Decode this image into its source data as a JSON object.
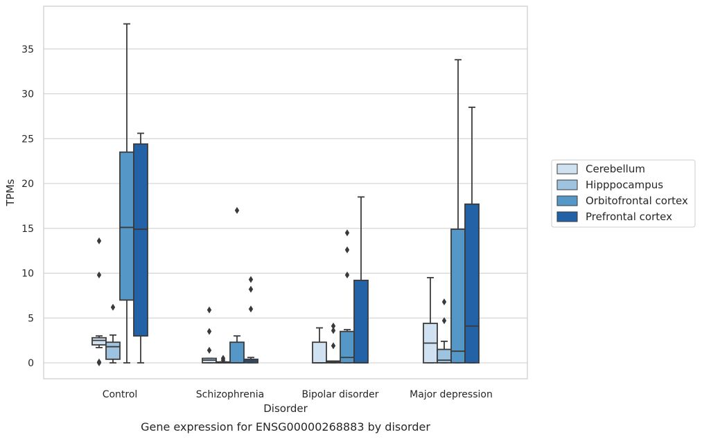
{
  "chart_data": {
    "type": "box",
    "title": "",
    "caption": "Gene expression for ENSG00000268883 by disorder",
    "xlabel": "Disorder",
    "ylabel": "TPMs",
    "ylim": [
      -1.8,
      39.2
    ],
    "yticks": [
      0,
      5,
      10,
      15,
      20,
      25,
      30,
      35
    ],
    "grid": "horizontal",
    "legend_position": "right",
    "categories": [
      "Control",
      "Schizophrenia",
      "Bipolar disorder",
      "Major depression"
    ],
    "series": [
      {
        "name": "Cerebellum",
        "color": "#d0e1f2",
        "boxes": [
          {
            "whisker_low": 1.7,
            "q1": 2.0,
            "median": 2.5,
            "q3": 2.8,
            "whisker_high": 3.0,
            "outliers": [
              13.6,
              9.8,
              0.1,
              0.0
            ]
          },
          {
            "whisker_low": 0.0,
            "q1": 0.0,
            "median": 0.3,
            "q3": 0.5,
            "whisker_high": 0.5,
            "outliers": [
              5.9,
              3.5,
              1.4
            ]
          },
          {
            "whisker_low": 0.0,
            "q1": 0.0,
            "median": 0.0,
            "q3": 2.3,
            "whisker_high": 3.9,
            "outliers": []
          },
          {
            "whisker_low": 0.0,
            "q1": 0.0,
            "median": 2.2,
            "q3": 4.4,
            "whisker_high": 9.5,
            "outliers": []
          }
        ]
      },
      {
        "name": "Hipppocampus",
        "color": "#9dc3e0",
        "boxes": [
          {
            "whisker_low": 0.0,
            "q1": 0.4,
            "median": 1.8,
            "q3": 2.3,
            "whisker_high": 3.1,
            "outliers": [
              6.2
            ]
          },
          {
            "whisker_low": 0.0,
            "q1": 0.0,
            "median": 0.0,
            "q3": 0.1,
            "whisker_high": 0.1,
            "outliers": [
              0.5,
              0.3
            ]
          },
          {
            "whisker_low": 0.0,
            "q1": 0.0,
            "median": 0.1,
            "q3": 0.2,
            "whisker_high": 0.2,
            "outliers": [
              4.1,
              3.6,
              1.9
            ]
          },
          {
            "whisker_low": 0.0,
            "q1": 0.0,
            "median": 0.3,
            "q3": 1.5,
            "whisker_high": 2.4,
            "outliers": [
              6.8,
              4.7
            ]
          }
        ]
      },
      {
        "name": "Orbitofrontal cortex",
        "color": "#5598c8",
        "boxes": [
          {
            "whisker_low": 0.0,
            "q1": 7.0,
            "median": 15.1,
            "q3": 23.5,
            "whisker_high": 37.8,
            "outliers": []
          },
          {
            "whisker_low": 0.0,
            "q1": 0.0,
            "median": 0.0,
            "q3": 2.3,
            "whisker_high": 3.0,
            "outliers": [
              17.0
            ]
          },
          {
            "whisker_low": 0.0,
            "q1": 0.0,
            "median": 0.6,
            "q3": 3.5,
            "whisker_high": 3.7,
            "outliers": [
              14.5,
              12.6,
              9.8
            ]
          },
          {
            "whisker_low": 0.0,
            "q1": 0.0,
            "median": 1.3,
            "q3": 14.9,
            "whisker_high": 33.8,
            "outliers": []
          }
        ]
      },
      {
        "name": "Prefrontal cortex",
        "color": "#2462a8",
        "boxes": [
          {
            "whisker_low": 0.0,
            "q1": 3.0,
            "median": 14.9,
            "q3": 24.4,
            "whisker_high": 25.6,
            "outliers": []
          },
          {
            "whisker_low": 0.0,
            "q1": 0.0,
            "median": 0.2,
            "q3": 0.4,
            "whisker_high": 0.6,
            "outliers": [
              9.3,
              8.2,
              6.0
            ]
          },
          {
            "whisker_low": 0.0,
            "q1": 0.0,
            "median": 0.0,
            "q3": 9.2,
            "whisker_high": 18.5,
            "outliers": []
          },
          {
            "whisker_low": 0.0,
            "q1": 0.0,
            "median": 4.1,
            "q3": 17.7,
            "whisker_high": 28.5,
            "outliers": []
          }
        ]
      }
    ]
  }
}
